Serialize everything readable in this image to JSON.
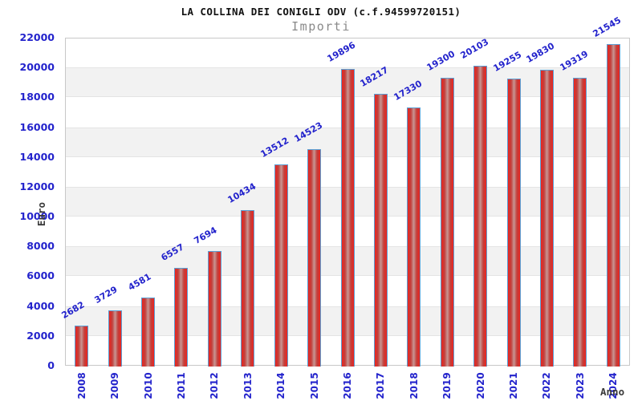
{
  "title": "LA COLLINA DEI CONIGLI ODV (c.f.94599720151)",
  "subtitle": "Importi",
  "chart_data": {
    "type": "bar",
    "categories": [
      "2008",
      "2009",
      "2010",
      "2011",
      "2012",
      "2013",
      "2014",
      "2015",
      "2016",
      "2017",
      "2018",
      "2019",
      "2020",
      "2021",
      "2022",
      "2023",
      "2024"
    ],
    "values": [
      2682,
      3729,
      4581,
      6557,
      7694,
      10434,
      13512,
      14523,
      19896,
      18217,
      17330,
      19300,
      20103,
      19255,
      19830,
      19319,
      21545
    ],
    "title": "LA COLLINA DEI CONIGLI ODV (c.f.94599720151)",
    "subtitle": "Importi",
    "xlabel": "Anno",
    "ylabel": "Euro",
    "ylim": [
      0,
      22000
    ],
    "ytick_step": 2000,
    "ytick_labels": [
      "0",
      "2000",
      "4000",
      "6000",
      "8000",
      "10000",
      "12000",
      "14000",
      "16000",
      "18000",
      "20000",
      "22000"
    ],
    "grid": "alternating-horizontal-bands",
    "legend_position": "none",
    "bar_value_labels_rotation_deg": -30,
    "x_tick_rotation_deg": -90
  },
  "colors": {
    "label_blue": "#2323cc",
    "bar_edge": "#ea241f",
    "bar_mid": "#c2403c",
    "bar_center": "#c89693",
    "bar_border": "#5b9fd4",
    "band_gray": "#f2f2f2",
    "band_edge": "#e4e4e4",
    "plot_border": "#c8c8c8",
    "title_color": "#111111",
    "subtitle_color": "#8a8a8a",
    "axis_title_color": "#3a3a3a"
  }
}
